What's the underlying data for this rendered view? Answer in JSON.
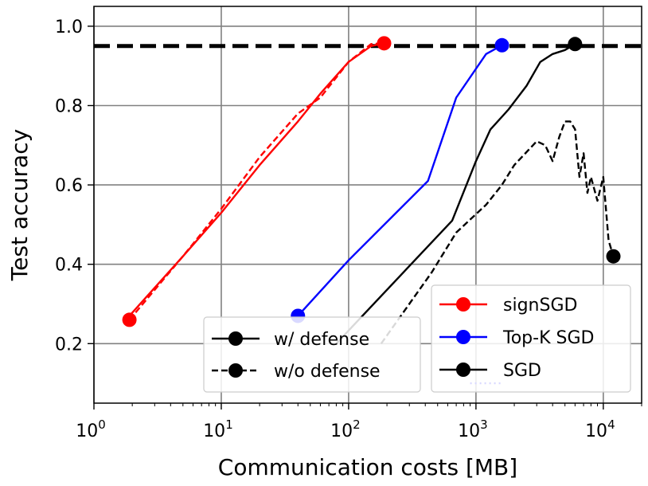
{
  "chart_data": {
    "type": "line",
    "xscale": "log",
    "xlabel": "Communication costs [MB]",
    "ylabel": "Test accuracy",
    "xlim": [
      1,
      20000
    ],
    "ylim": [
      0.05,
      1.05
    ],
    "grid": true,
    "x_ticks": [
      {
        "value": 1,
        "base": "10",
        "exp": "0"
      },
      {
        "value": 10,
        "base": "10",
        "exp": "1"
      },
      {
        "value": 100,
        "base": "10",
        "exp": "2"
      },
      {
        "value": 1000,
        "base": "10",
        "exp": "3"
      },
      {
        "value": 10000,
        "base": "10",
        "exp": "4"
      }
    ],
    "y_ticks": [
      {
        "value": 0.2,
        "label": "0.2"
      },
      {
        "value": 0.4,
        "label": "0.4"
      },
      {
        "value": 0.6,
        "label": "0.6"
      },
      {
        "value": 0.8,
        "label": "0.8"
      },
      {
        "value": 1.0,
        "label": "1.0"
      }
    ],
    "target_accuracy": 0.95,
    "series": [
      {
        "name": "signSGD",
        "defense": "w/ defense",
        "color": "#ff0000",
        "style": "solid",
        "x": [
          1.9,
          5,
          10,
          20,
          40,
          60,
          100,
          150,
          190
        ],
        "y": [
          0.27,
          0.42,
          0.53,
          0.65,
          0.76,
          0.83,
          0.91,
          0.95,
          0.957
        ],
        "end_marker": true
      },
      {
        "name": "signSGD",
        "defense": "w/o defense",
        "color": "#ff0000",
        "style": "dashed",
        "x": [
          1.9,
          5,
          10,
          20,
          40,
          60,
          100,
          150,
          190
        ],
        "y": [
          0.26,
          0.42,
          0.54,
          0.67,
          0.78,
          0.82,
          0.91,
          0.955,
          0.957
        ],
        "start_marker": true
      },
      {
        "name": "Top-K SGD",
        "defense": "w/ defense",
        "color": "#0000ff",
        "style": "solid",
        "x": [
          40,
          100,
          420,
          700,
          1200,
          1600
        ],
        "y": [
          0.27,
          0.41,
          0.61,
          0.82,
          0.93,
          0.952
        ],
        "start_marker": true,
        "end_marker": true
      },
      {
        "name": "Top-K SGD",
        "defense": "w/o defense",
        "color": "#0000ff",
        "style": "dotted",
        "x": [
          900,
          1600
        ],
        "y": [
          0.1,
          0.1
        ]
      },
      {
        "name": "SGD",
        "defense": "w/ defense",
        "color": "#000000",
        "style": "solid",
        "x": [
          80,
          650,
          1000,
          1300,
          1800,
          2500,
          3200,
          4000,
          5000,
          6000
        ],
        "y": [
          0.2,
          0.51,
          0.66,
          0.74,
          0.79,
          0.85,
          0.91,
          0.93,
          0.94,
          0.955
        ],
        "end_marker": true
      },
      {
        "name": "SGD",
        "defense": "w/o defense",
        "color": "#000000",
        "style": "dashed",
        "x": [
          180,
          450,
          700,
          1200,
          1600,
          2000,
          3000,
          3500,
          4000,
          4500,
          5000,
          5500,
          6000,
          6500,
          7000,
          7500,
          8000,
          9000,
          10000,
          11000,
          12000
        ],
        "y": [
          0.2,
          0.38,
          0.48,
          0.55,
          0.6,
          0.65,
          0.71,
          0.7,
          0.66,
          0.72,
          0.76,
          0.76,
          0.74,
          0.62,
          0.68,
          0.58,
          0.62,
          0.56,
          0.62,
          0.46,
          0.42
        ],
        "end_marker": true
      }
    ],
    "legend_defense": [
      "w/ defense",
      "w/o defense"
    ],
    "legend_methods": [
      {
        "label": "signSGD",
        "color": "#ff0000"
      },
      {
        "label": "Top-K SGD",
        "color": "#0000ff"
      },
      {
        "label": "SGD",
        "color": "#000000"
      }
    ]
  }
}
